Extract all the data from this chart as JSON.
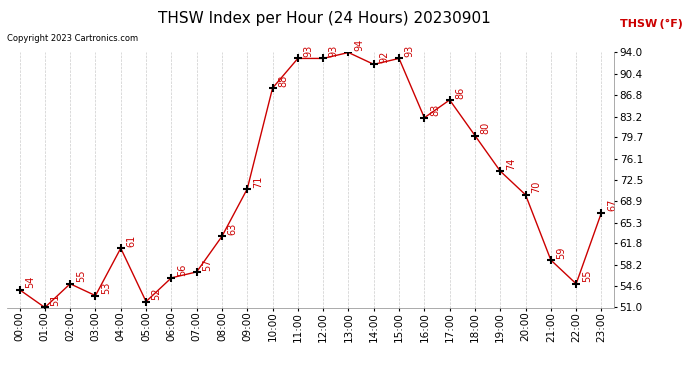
{
  "title": "THSW Index per Hour (24 Hours) 20230901",
  "copyright": "Copyright 2023 Cartronics.com",
  "legend_label": "THSW (°F)",
  "hours": [
    0,
    1,
    2,
    3,
    4,
    5,
    6,
    7,
    8,
    9,
    10,
    11,
    12,
    13,
    14,
    15,
    16,
    17,
    18,
    19,
    20,
    21,
    22,
    23
  ],
  "x_labels": [
    "00:00",
    "01:00",
    "02:00",
    "03:00",
    "04:00",
    "05:00",
    "06:00",
    "07:00",
    "08:00",
    "09:00",
    "10:00",
    "11:00",
    "12:00",
    "13:00",
    "14:00",
    "15:00",
    "16:00",
    "17:00",
    "18:00",
    "19:00",
    "20:00",
    "21:00",
    "22:00",
    "23:00"
  ],
  "values": [
    54,
    51,
    55,
    53,
    61,
    52,
    56,
    57,
    63,
    71,
    88,
    93,
    93,
    94,
    92,
    93,
    83,
    86,
    80,
    74,
    70,
    59,
    55,
    67
  ],
  "y_ticks": [
    51.0,
    54.6,
    58.2,
    61.8,
    65.3,
    68.9,
    72.5,
    76.1,
    79.7,
    83.2,
    86.8,
    90.4,
    94.0
  ],
  "ylim": [
    51.0,
    94.0
  ],
  "line_color": "#cc0000",
  "marker_color": "#000000",
  "grid_color": "#cccccc",
  "background_color": "#ffffff",
  "title_fontsize": 11,
  "tick_fontsize": 7.5,
  "label_fontsize": 7.5
}
